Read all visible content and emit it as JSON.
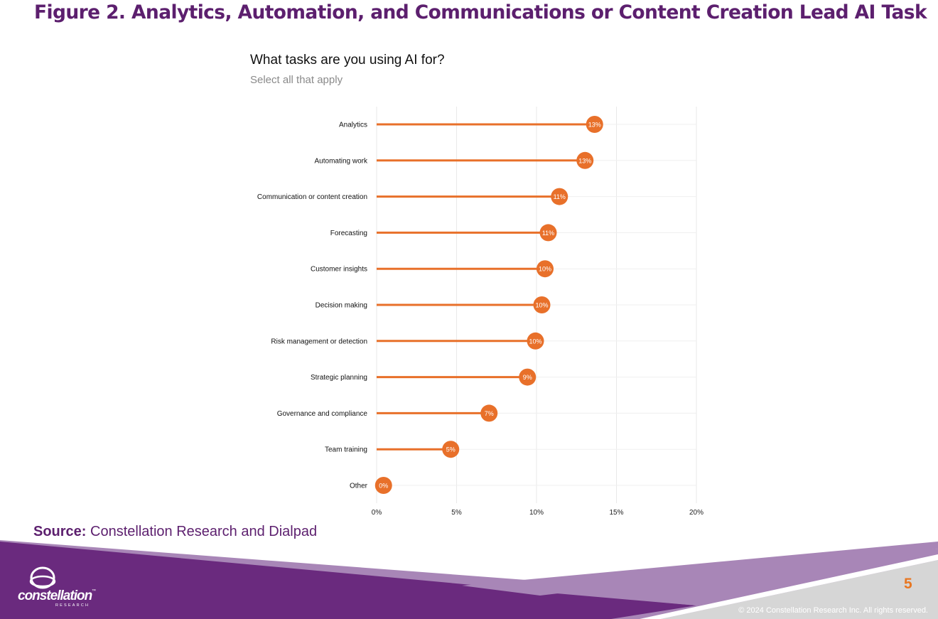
{
  "figure_title": "Figure 2. Analytics, Automation, and Communications or Content Creation Lead AI Task",
  "source": {
    "label": "Source:",
    "text": "Constellation Research and Dialpad"
  },
  "logo": {
    "word": "constellation",
    "tm": "™",
    "sub": "RESEARCH"
  },
  "page_number": "5",
  "copyright": "© 2024 Constellation Research Inc. All rights reserved.",
  "colors": {
    "accent": "#e8702a",
    "title": "#5c1f6e",
    "purple_dark": "#6a2a7e",
    "purple_light": "#a886b7",
    "grey": "#d6d6d6",
    "page_num": "#e87722"
  },
  "chart_data": {
    "type": "lollipop",
    "title": "What tasks are you using AI for?",
    "subtitle": "Select all that apply",
    "categories": [
      "Analytics",
      "Automating work",
      "Communication or content creation",
      "Forecasting",
      "Customer insights",
      "Decision making",
      "Risk management or detection",
      "Strategic planning",
      "Governance and compliance",
      "Team training",
      "Other"
    ],
    "values": [
      13.5,
      12.9,
      11.3,
      10.6,
      10.4,
      10.2,
      9.8,
      9.3,
      6.9,
      4.5,
      0.3
    ],
    "labels": [
      "13%",
      "13%",
      "11%",
      "11%",
      "10%",
      "10%",
      "10%",
      "9%",
      "7%",
      "5%",
      "0%"
    ],
    "xlim": [
      0,
      20
    ],
    "xticks": [
      0,
      5,
      10,
      15,
      20
    ],
    "xtick_labels": [
      "0%",
      "5%",
      "10%",
      "15%",
      "20%"
    ],
    "grid": true
  }
}
